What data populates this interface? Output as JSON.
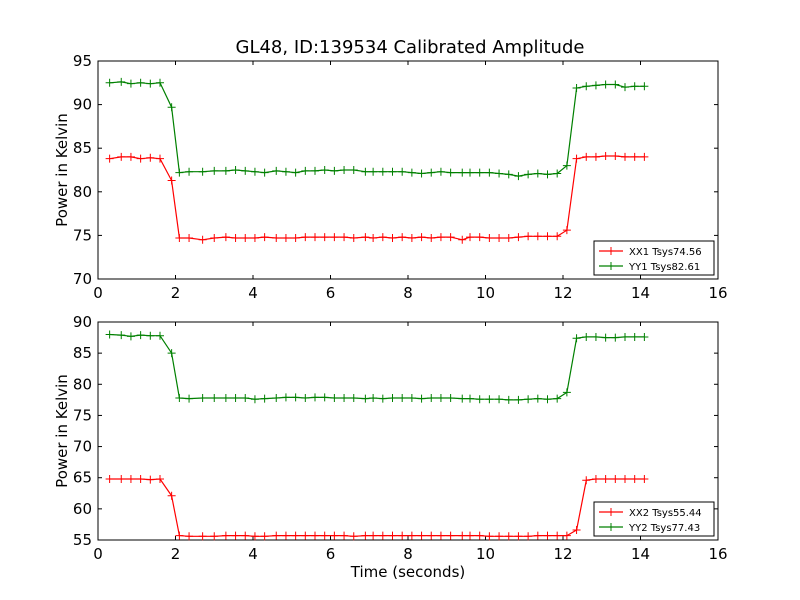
{
  "title": "GL48, ID:139534 Calibrated Amplitude",
  "chart_data": [
    {
      "type": "line",
      "title": "GL48, ID:139534 Calibrated Amplitude",
      "xlabel": "",
      "ylabel": "Power in Kelvin",
      "xlim": [
        0,
        16
      ],
      "ylim": [
        70,
        95
      ],
      "xticks": [
        0,
        2,
        4,
        6,
        8,
        10,
        12,
        14,
        16
      ],
      "yticks": [
        70,
        75,
        80,
        85,
        90,
        95
      ],
      "legend_position": "lower-right",
      "x": [
        0.3,
        0.6,
        0.85,
        1.1,
        1.35,
        1.6,
        1.9,
        2.1,
        2.35,
        2.7,
        3.0,
        3.3,
        3.55,
        3.8,
        4.05,
        4.3,
        4.6,
        4.85,
        5.1,
        5.35,
        5.6,
        5.85,
        6.1,
        6.35,
        6.6,
        6.9,
        7.1,
        7.35,
        7.6,
        7.85,
        8.1,
        8.35,
        8.6,
        8.85,
        9.1,
        9.4,
        9.6,
        9.85,
        10.1,
        10.35,
        10.6,
        10.85,
        11.1,
        11.35,
        11.6,
        11.85,
        12.1,
        12.35,
        12.6,
        12.85,
        13.1,
        13.35,
        13.6,
        13.85,
        14.1
      ],
      "series": [
        {
          "name": "XX1 Tsys74.56",
          "color": "#ff0000",
          "values": [
            83.8,
            84.0,
            84.0,
            83.8,
            83.9,
            83.8,
            81.3,
            74.7,
            74.7,
            74.5,
            74.7,
            74.8,
            74.7,
            74.7,
            74.7,
            74.8,
            74.7,
            74.7,
            74.7,
            74.8,
            74.8,
            74.8,
            74.8,
            74.8,
            74.7,
            74.8,
            74.7,
            74.8,
            74.7,
            74.8,
            74.7,
            74.8,
            74.7,
            74.8,
            74.8,
            74.5,
            74.8,
            74.8,
            74.7,
            74.7,
            74.7,
            74.8,
            74.9,
            74.9,
            74.9,
            74.9,
            75.6,
            83.8,
            84.0,
            84.0,
            84.1,
            84.1,
            84.0,
            84.0,
            84.0
          ]
        },
        {
          "name": "YY1 Tsys82.61",
          "color": "#008000",
          "values": [
            92.5,
            92.6,
            92.4,
            92.5,
            92.4,
            92.5,
            89.7,
            82.2,
            82.3,
            82.3,
            82.4,
            82.4,
            82.5,
            82.4,
            82.3,
            82.2,
            82.4,
            82.3,
            82.2,
            82.4,
            82.4,
            82.5,
            82.4,
            82.5,
            82.5,
            82.3,
            82.3,
            82.3,
            82.3,
            82.3,
            82.2,
            82.1,
            82.2,
            82.3,
            82.2,
            82.2,
            82.2,
            82.2,
            82.2,
            82.1,
            82.0,
            81.8,
            82.0,
            82.1,
            82.0,
            82.1,
            83.0,
            91.9,
            92.1,
            92.2,
            92.3,
            92.3,
            92.0,
            92.1,
            92.1
          ]
        }
      ]
    },
    {
      "type": "line",
      "title": "",
      "xlabel": "Time (seconds)",
      "ylabel": "Power in Kelvin",
      "xlim": [
        0,
        16
      ],
      "ylim": [
        55,
        90
      ],
      "xticks": [
        0,
        2,
        4,
        6,
        8,
        10,
        12,
        14,
        16
      ],
      "yticks": [
        55,
        60,
        65,
        70,
        75,
        80,
        85,
        90
      ],
      "legend_position": "lower-right",
      "x": [
        0.3,
        0.6,
        0.85,
        1.1,
        1.35,
        1.6,
        1.9,
        2.1,
        2.35,
        2.7,
        3.0,
        3.3,
        3.55,
        3.8,
        4.05,
        4.3,
        4.6,
        4.85,
        5.1,
        5.35,
        5.6,
        5.85,
        6.1,
        6.35,
        6.6,
        6.9,
        7.1,
        7.35,
        7.6,
        7.85,
        8.1,
        8.35,
        8.6,
        8.85,
        9.1,
        9.4,
        9.6,
        9.85,
        10.1,
        10.35,
        10.6,
        10.85,
        11.1,
        11.35,
        11.6,
        11.85,
        12.1,
        12.35,
        12.6,
        12.85,
        13.1,
        13.35,
        13.6,
        13.85,
        14.1
      ],
      "series": [
        {
          "name": "XX2 Tsys55.44",
          "color": "#ff0000",
          "values": [
            64.8,
            64.8,
            64.8,
            64.8,
            64.7,
            64.8,
            62.1,
            55.7,
            55.6,
            55.6,
            55.6,
            55.7,
            55.7,
            55.7,
            55.6,
            55.6,
            55.7,
            55.7,
            55.7,
            55.7,
            55.7,
            55.7,
            55.7,
            55.7,
            55.6,
            55.7,
            55.7,
            55.7,
            55.7,
            55.7,
            55.7,
            55.7,
            55.7,
            55.7,
            55.7,
            55.7,
            55.7,
            55.7,
            55.6,
            55.6,
            55.6,
            55.6,
            55.6,
            55.7,
            55.7,
            55.7,
            55.7,
            56.6,
            64.6,
            64.8,
            64.8,
            64.8,
            64.8,
            64.8,
            64.8
          ]
        },
        {
          "name": "YY2 Tsys77.43",
          "color": "#008000",
          "values": [
            88.0,
            87.9,
            87.7,
            87.9,
            87.8,
            87.8,
            85.0,
            77.8,
            77.7,
            77.8,
            77.8,
            77.8,
            77.8,
            77.8,
            77.6,
            77.7,
            77.8,
            77.9,
            77.9,
            77.8,
            77.9,
            77.9,
            77.8,
            77.8,
            77.8,
            77.7,
            77.8,
            77.7,
            77.8,
            77.8,
            77.8,
            77.7,
            77.8,
            77.8,
            77.8,
            77.7,
            77.7,
            77.6,
            77.6,
            77.6,
            77.5,
            77.5,
            77.6,
            77.7,
            77.6,
            77.7,
            78.7,
            87.4,
            87.6,
            87.6,
            87.5,
            87.5,
            87.6,
            87.6,
            87.6
          ]
        }
      ]
    }
  ]
}
